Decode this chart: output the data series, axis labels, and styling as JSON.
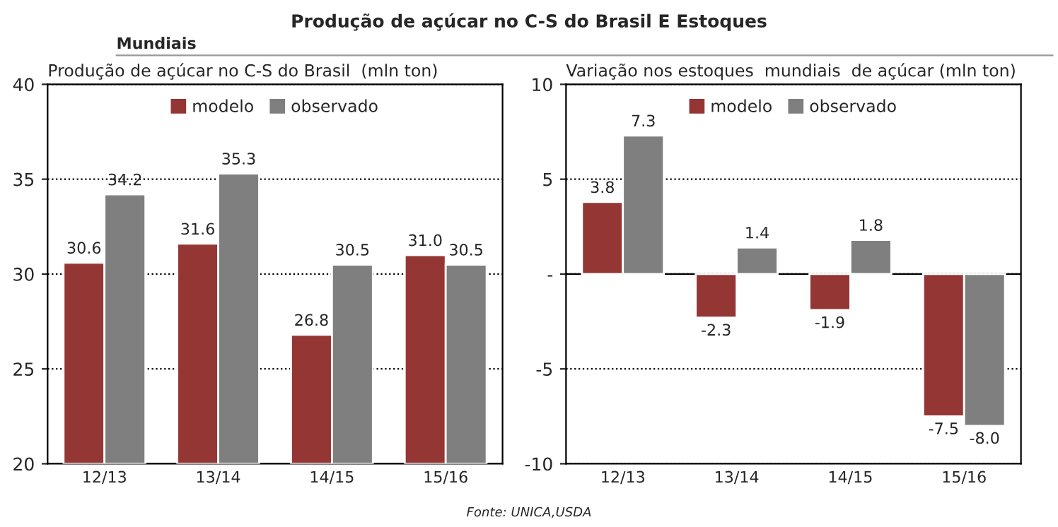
{
  "chart_data": [
    {
      "type": "other",
      "title": "Produção de açúcar no C-S do Brasil E Estoques Mundiais",
      "annotations": [
        "Fonte: UNICA,USDA"
      ]
    },
    {
      "type": "bar",
      "title": "Produção de açúcar no C-S do Brasil  (mln ton)",
      "categories": [
        "12/13",
        "13/14",
        "14/15",
        "15/16"
      ],
      "series": [
        {
          "name": "modelo",
          "color": "#943634",
          "values": [
            30.6,
            31.6,
            26.8,
            31.0
          ],
          "value_labels": [
            "30.6",
            "31.6",
            "26.8",
            "31.0"
          ]
        },
        {
          "name": "observado",
          "color": "#7f7f7f",
          "values": [
            34.2,
            35.3,
            30.5,
            30.5
          ],
          "value_labels": [
            "34.2",
            "35.3",
            "30.5",
            "30.5"
          ]
        }
      ],
      "ylim": [
        20,
        40
      ],
      "yticks": [
        20,
        25,
        30,
        35,
        40
      ],
      "grid": "y",
      "legend": "top"
    },
    {
      "type": "bar",
      "title": "Variação nos estoques  mundiais  de açúcar (mln ton)",
      "categories": [
        "12/13",
        "13/14",
        "14/15",
        "15/16"
      ],
      "series": [
        {
          "name": "modelo",
          "color": "#943634",
          "values": [
            3.8,
            -2.3,
            -1.9,
            -7.5
          ],
          "value_labels": [
            "3.8",
            "-2.3",
            "-1.9",
            "-7.5"
          ]
        },
        {
          "name": "observado",
          "color": "#7f7f7f",
          "values": [
            7.3,
            1.4,
            1.8,
            -8.0
          ],
          "value_labels": [
            "7.3",
            "1.4",
            "1.8",
            "-8.0"
          ]
        }
      ],
      "ylim": [
        -10,
        10
      ],
      "yticks": [
        -10,
        -5,
        {
          "value": 0,
          "label": "-"
        },
        5,
        10
      ],
      "grid": "y",
      "legend": "top"
    }
  ]
}
